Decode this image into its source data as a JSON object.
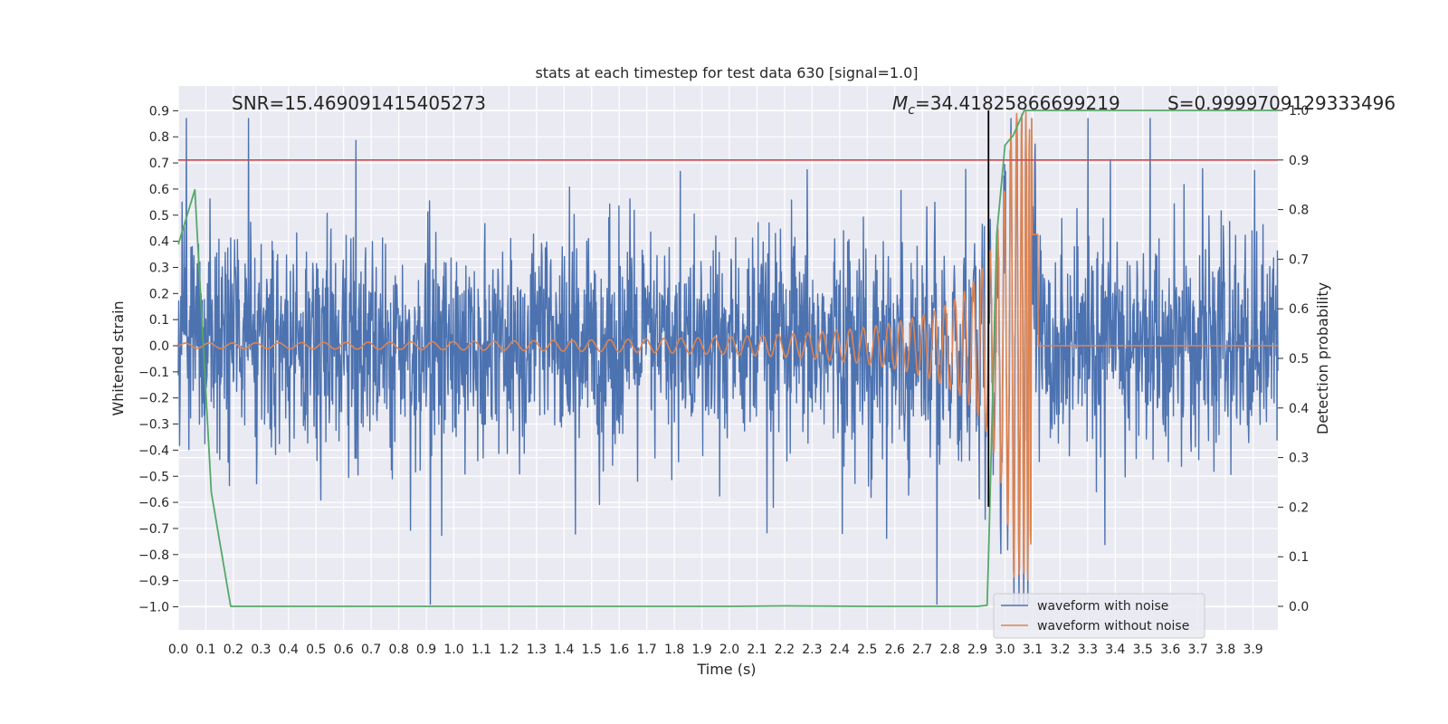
{
  "chart_data": {
    "type": "line",
    "title": "stats at each timestep for test data 630 [signal=1.0]",
    "xlabel": "Time (s)",
    "ylabel": "Whitened strain",
    "y2label": "Detection probability",
    "xlim": [
      0.0,
      3.99
    ],
    "ylim": [
      -1.09,
      1.0
    ],
    "y2lim": [
      -0.05,
      1.0
    ],
    "xticks": [
      0.0,
      0.1,
      0.2,
      0.3,
      0.4,
      0.5,
      0.6,
      0.7,
      0.8,
      0.9,
      1.0,
      1.1,
      1.2,
      1.3,
      1.4,
      1.5,
      1.6,
      1.7,
      1.8,
      1.9,
      2.0,
      2.1,
      2.2,
      2.3,
      2.4,
      2.5,
      2.6,
      2.7,
      2.8,
      2.9,
      3.0,
      3.1,
      3.2,
      3.3,
      3.4,
      3.5,
      3.6,
      3.7,
      3.8,
      3.9
    ],
    "xtick_labels": [
      "0.0",
      "0.1",
      "0.2",
      "0.3",
      "0.4",
      "0.5",
      "0.6",
      "0.7",
      "0.8",
      "0.9",
      "1.0",
      "1.1",
      "1.2",
      "1.3",
      "1.4",
      "1.5",
      "1.6",
      "1.7",
      "1.8",
      "1.9",
      "2.0",
      "2.1",
      "2.2",
      "2.3",
      "2.4",
      "2.5",
      "2.6",
      "2.7",
      "2.8",
      "2.9",
      "3.0",
      "3.1",
      "3.2",
      "3.3",
      "3.4",
      "3.5",
      "3.6",
      "3.7",
      "3.8",
      "3.9"
    ],
    "yticks": [
      0.9,
      0.8,
      0.7,
      0.6,
      0.5,
      0.4,
      0.3,
      0.2,
      0.1,
      0.0,
      -0.1,
      -0.2,
      -0.3,
      -0.4,
      -0.5,
      -0.6,
      -0.7,
      -0.8,
      -0.9,
      -1.0
    ],
    "ytick_labels": [
      "0.9",
      "0.8",
      "0.7",
      "0.6",
      "0.5",
      "0.4",
      "0.3",
      "0.2",
      "0.1",
      "0.0",
      "−0.1",
      "−0.2",
      "−0.3",
      "−0.4",
      "−0.5",
      "−0.6",
      "−0.7",
      "−0.8",
      "−0.9",
      "−1.0"
    ],
    "y2ticks": [
      1.0,
      0.9,
      0.8,
      0.7,
      0.6,
      0.5,
      0.4,
      0.3,
      0.2,
      0.1,
      0.0
    ],
    "y2tick_labels": [
      "1.0",
      "0.9",
      "0.8",
      "0.7",
      "0.6",
      "0.5",
      "0.4",
      "0.3",
      "0.2",
      "0.1",
      "0.0"
    ],
    "grid": true,
    "legend_position": "lower-right",
    "annotations": {
      "snr": "SNR=15.469091415405273",
      "mc_symbol": "M",
      "mc_subscript": "c",
      "mc_value": "=34.41825866699219",
      "s_label": "S=0.9999709129333496"
    },
    "threshold_line": {
      "axis": "y2",
      "value": 0.9,
      "color": "#c44e52"
    },
    "detection_marker_time": 2.94,
    "series": [
      {
        "name": "waveform with noise",
        "color": "#4c72b0",
        "axis": "y",
        "description_values": {
          "mean": 0.0,
          "noise_std": 0.2,
          "max": 0.87,
          "min": -0.99
        }
      },
      {
        "name": "waveform without noise",
        "color": "#dd8452",
        "axis": "y",
        "chirp": {
          "start_amp": 0.01,
          "merger_time": 3.1,
          "merger_amp": 0.9,
          "end_time": 3.12
        }
      },
      {
        "name": "",
        "color": "#55a868",
        "axis": "y2",
        "x": [
          0.0,
          0.06,
          0.12,
          0.19,
          1.0,
          2.0,
          2.2,
          2.5,
          2.9,
          2.935,
          2.94,
          2.97,
          3.0,
          3.03,
          3.07,
          3.1,
          3.2,
          3.5,
          3.99
        ],
        "values": [
          0.73,
          0.84,
          0.23,
          0.0,
          0.0,
          0.0,
          0.001,
          0.0,
          0.0,
          0.002,
          0.1,
          0.75,
          0.93,
          0.95,
          1.0,
          1.0,
          1.0,
          1.0,
          1.0
        ]
      }
    ]
  }
}
